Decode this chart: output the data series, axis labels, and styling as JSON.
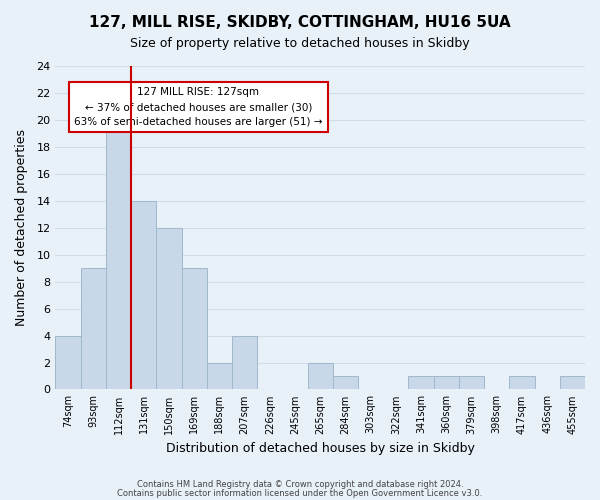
{
  "title": "127, MILL RISE, SKIDBY, COTTINGHAM, HU16 5UA",
  "subtitle": "Size of property relative to detached houses in Skidby",
  "xlabel": "Distribution of detached houses by size in Skidby",
  "ylabel": "Number of detached properties",
  "footnote1": "Contains HM Land Registry data © Crown copyright and database right 2024.",
  "footnote2": "Contains public sector information licensed under the Open Government Licence v3.0.",
  "bar_color": "#c8d8e8",
  "bar_edge_color": "#a0b8cc",
  "categories": [
    "74sqm",
    "93sqm",
    "112sqm",
    "131sqm",
    "150sqm",
    "169sqm",
    "188sqm",
    "207sqm",
    "226sqm",
    "245sqm",
    "265sqm",
    "284sqm",
    "303sqm",
    "322sqm",
    "341sqm",
    "360sqm",
    "379sqm",
    "398sqm",
    "417sqm",
    "436sqm",
    "455sqm"
  ],
  "values": [
    4,
    9,
    20,
    14,
    12,
    9,
    2,
    4,
    0,
    0,
    2,
    1,
    0,
    0,
    1,
    1,
    1,
    0,
    1,
    0,
    1
  ],
  "ylim": [
    0,
    24
  ],
  "yticks": [
    0,
    2,
    4,
    6,
    8,
    10,
    12,
    14,
    16,
    18,
    20,
    22,
    24
  ],
  "annotation_line0": "127 MILL RISE: 127sqm",
  "annotation_line1": "← 37% of detached houses are smaller (30)",
  "annotation_line2": "63% of semi-detached houses are larger (51) →",
  "marker_color": "#cc0000",
  "box_color": "#ffffff",
  "box_edge_color": "#cc0000",
  "grid_color": "#d0dce8",
  "background_color": "#e8f0f8"
}
